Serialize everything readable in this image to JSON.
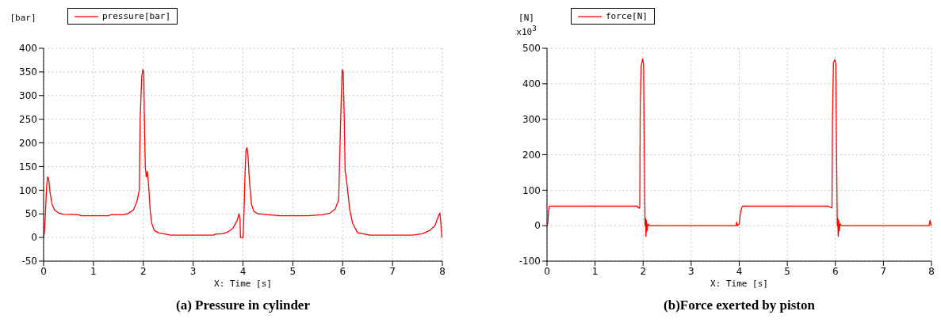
{
  "chart_data": [
    {
      "type": "line",
      "title": "(a) Pressure in cylinder",
      "xlabel": "X: Time [s]",
      "ylabel": "[bar]",
      "xlim": [
        0,
        8
      ],
      "xticks": [
        0,
        1,
        2,
        3,
        4,
        5,
        6,
        7,
        8
      ],
      "ylim": [
        -50,
        400
      ],
      "yticks": [
        -50,
        0,
        50,
        100,
        150,
        200,
        250,
        300,
        350,
        400
      ],
      "grid": true,
      "legend": "top",
      "marker": "none",
      "line_style": "solid",
      "series": [
        {
          "name": "pressure[bar]",
          "color": "#ff0000",
          "x": [
            0,
            0.02,
            0.04,
            0.06,
            0.08,
            0.1,
            0.13,
            0.17,
            0.22,
            0.3,
            0.4,
            0.7,
            0.75,
            1.3,
            1.35,
            1.6,
            1.7,
            1.8,
            1.87,
            1.92,
            1.94,
            1.97,
            1.99,
            2.01,
            2.02,
            2.04,
            2.06,
            2.08,
            2.1,
            2.12,
            2.14,
            2.17,
            2.22,
            2.3,
            2.4,
            2.55,
            3.4,
            3.45,
            3.6,
            3.7,
            3.8,
            3.88,
            3.92,
            3.94,
            3.95,
            4.0,
            4.02,
            4.04,
            4.06,
            4.08,
            4.1,
            4.13,
            4.17,
            4.22,
            4.3,
            4.5,
            4.75,
            5.3,
            5.6,
            5.75,
            5.85,
            5.92,
            5.96,
            5.99,
            6.01,
            6.03,
            6.05,
            6.07,
            6.1,
            6.14,
            6.2,
            6.3,
            6.55,
            7.4,
            7.6,
            7.75,
            7.85,
            7.92,
            7.95,
            7.97,
            7.99
          ],
          "values": [
            0,
            15,
            60,
            105,
            128,
            125,
            95,
            70,
            58,
            52,
            49,
            48,
            46,
            46,
            48,
            48,
            51,
            58,
            75,
            100,
            260,
            340,
            355,
            350,
            265,
            150,
            128,
            140,
            120,
            90,
            55,
            30,
            15,
            10,
            8,
            5,
            5,
            7,
            8,
            12,
            20,
            35,
            50,
            40,
            0,
            0,
            50,
            130,
            185,
            190,
            175,
            120,
            70,
            55,
            50,
            48,
            46,
            46,
            48,
            52,
            60,
            80,
            250,
            355,
            350,
            260,
            140,
            128,
            100,
            60,
            30,
            10,
            5,
            5,
            8,
            15,
            25,
            45,
            52,
            30,
            0
          ]
        }
      ]
    },
    {
      "type": "line",
      "title": "(b)Force exerted by piston",
      "xlabel": "X: Time [s]",
      "ylabel": "[N]",
      "annotations": [
        "x10$^{3}$"
      ],
      "xlim": [
        0,
        8
      ],
      "xticks": [
        0,
        1,
        2,
        3,
        4,
        5,
        6,
        7,
        8
      ],
      "ylim": [
        -100,
        500
      ],
      "yticks": [
        -100,
        0,
        100,
        200,
        300,
        400,
        500
      ],
      "grid": true,
      "legend": "top",
      "marker": "none",
      "line_style": "solid",
      "series": [
        {
          "name": "force[N]",
          "color": "#ff0000",
          "x": [
            0,
            0.02,
            0.03,
            0.05,
            1.88,
            1.9,
            1.93,
            1.94,
            1.96,
            1.99,
            2.01,
            2.02,
            2.04,
            2.05,
            2.06,
            2.07,
            2.08,
            2.1,
            2.13,
            3.93,
            3.95,
            3.96,
            4.0,
            4.02,
            4.05,
            4.07,
            5.85,
            5.9,
            5.93,
            5.94,
            5.96,
            5.99,
            6.01,
            6.02,
            6.04,
            6.05,
            6.06,
            6.07,
            6.08,
            6.1,
            6.13,
            7.95,
            7.97,
            7.99
          ],
          "values": [
            0,
            10,
            40,
            55,
            55,
            50,
            50,
            340,
            450,
            470,
            455,
            280,
            0,
            20,
            -30,
            15,
            -15,
            5,
            0,
            0,
            10,
            0,
            5,
            30,
            50,
            55,
            55,
            52,
            50,
            300,
            460,
            468,
            455,
            280,
            0,
            20,
            -30,
            15,
            -15,
            5,
            0,
            0,
            15,
            0
          ]
        }
      ]
    }
  ]
}
